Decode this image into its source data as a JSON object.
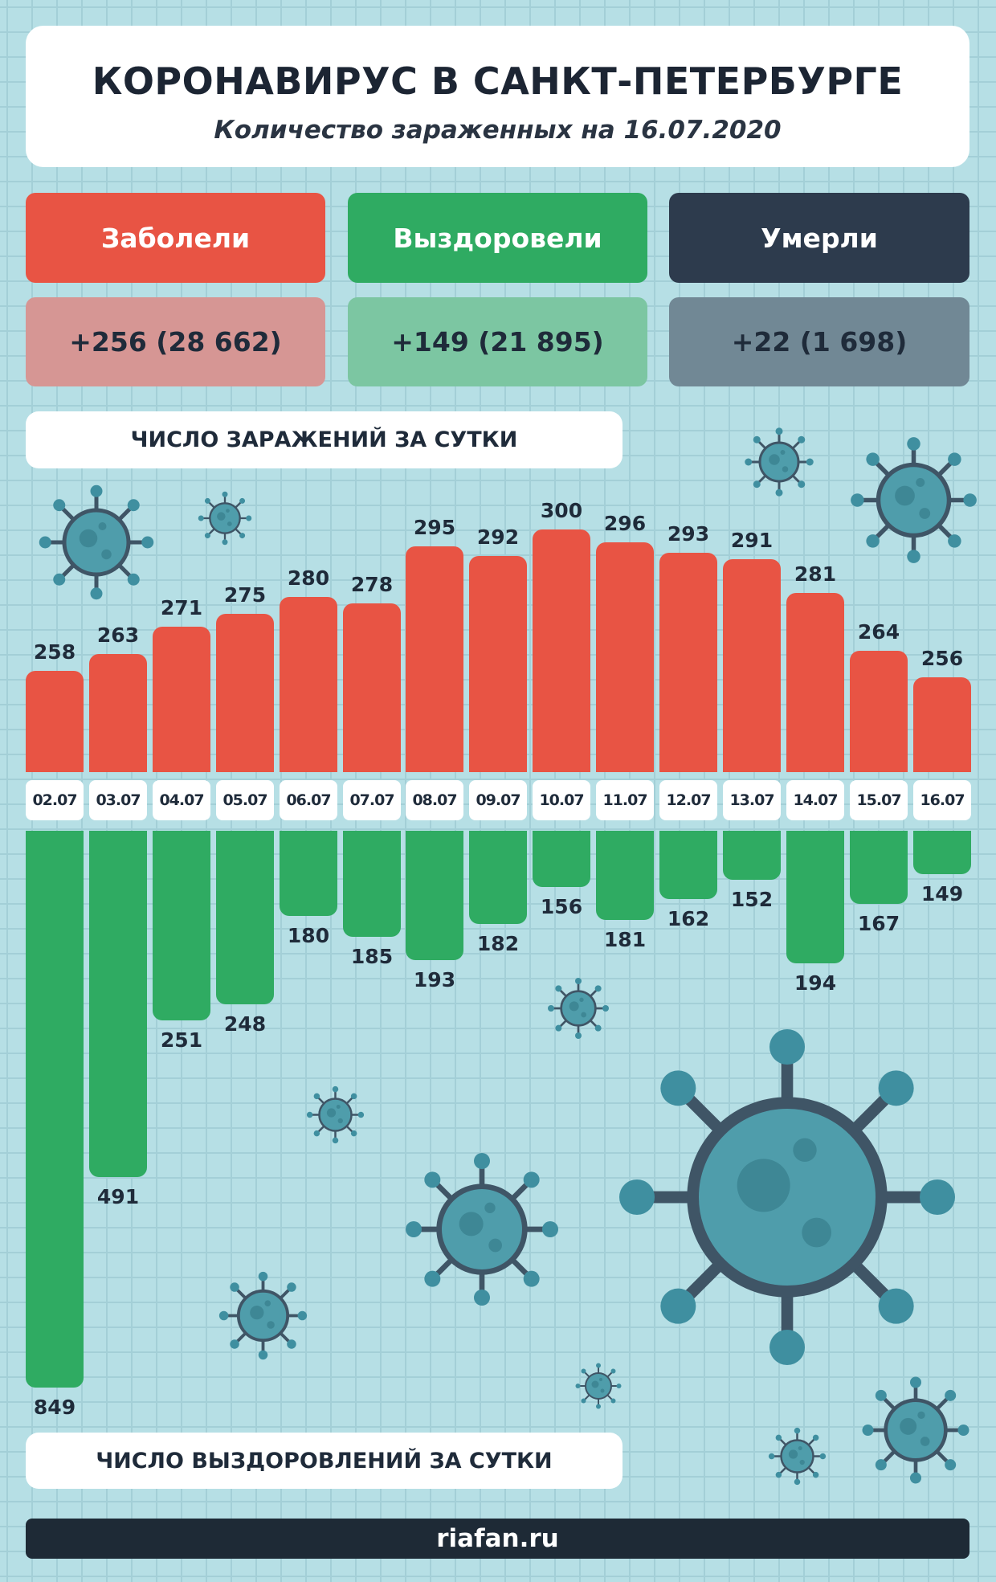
{
  "header": {
    "title": "КОРОНАВИРУС В САНКТ-ПЕТЕРБУРГЕ",
    "subtitle": "Количество зараженных на 16.07.2020"
  },
  "stats": [
    {
      "label": "Заболели",
      "value": "+256 (28 662)",
      "color": "#e85444",
      "value_bg": "#d69694"
    },
    {
      "label": "Выздоровели",
      "value": "+149 (21 895)",
      "color": "#2fab62",
      "value_bg": "#7cc6a2"
    },
    {
      "label": "Умерли",
      "value": "+22 (1 698)",
      "color": "#2d3b4d",
      "value_bg": "#718895"
    }
  ],
  "infections_label": "ЧИСЛО ЗАРАЖЕНИЙ ЗА СУТКИ",
  "recoveries_label": "ЧИСЛО ВЫЗДОРОВЛЕНИЙ ЗА СУТКИ",
  "footer": "riafan.ru",
  "chart_data": {
    "type": "bar",
    "categories": [
      "02.07",
      "03.07",
      "04.07",
      "05.07",
      "06.07",
      "07.07",
      "08.07",
      "09.07",
      "10.07",
      "11.07",
      "12.07",
      "13.07",
      "14.07",
      "15.07",
      "16.07"
    ],
    "series": [
      {
        "name": "ЧИСЛО ЗАРАЖЕНИЙ ЗА СУТКИ",
        "color": "#e85444",
        "values": [
          258,
          263,
          271,
          275,
          280,
          278,
          295,
          292,
          300,
          296,
          293,
          291,
          281,
          264,
          256
        ]
      },
      {
        "name": "ЧИСЛО ВЫЗДОРОВЛЕНИЙ ЗА СУТКИ",
        "color": "#2fab62",
        "values": [
          849,
          491,
          251,
          248,
          180,
          185,
          193,
          182,
          156,
          181,
          162,
          152,
          194,
          167,
          149
        ]
      }
    ]
  }
}
